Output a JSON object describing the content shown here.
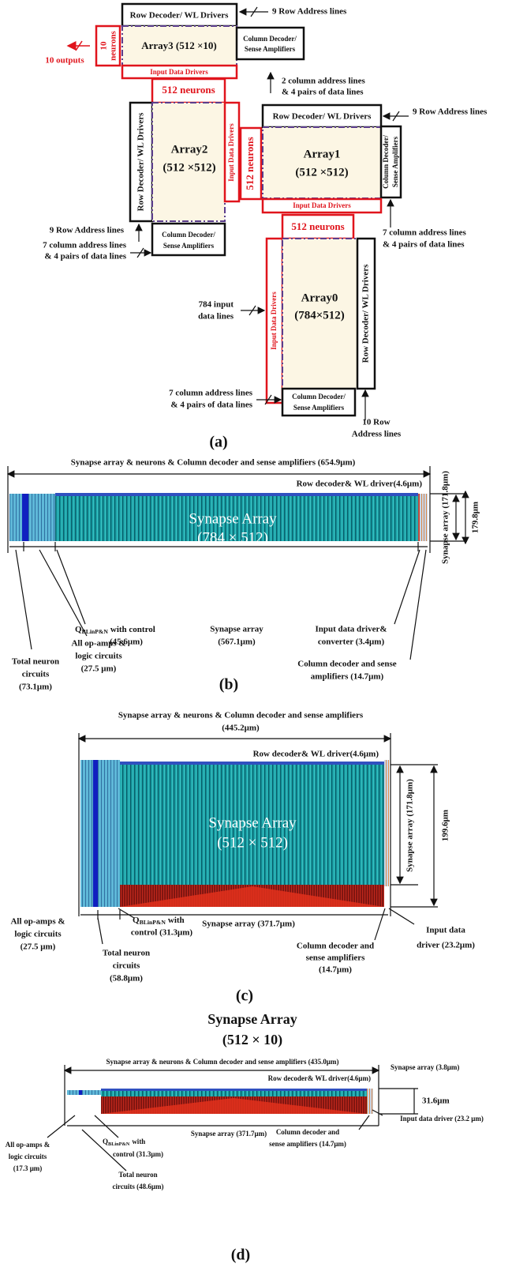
{
  "a": {
    "array3": {
      "label": "Array3 (512 ×10)",
      "row_decoder": "Row Decoder/ WL Drivers",
      "column_decoder": [
        "Column Decoder/",
        "Sense Amplifiers"
      ],
      "input_drivers": "Input Data Drivers",
      "neurons": [
        "10",
        "neurons"
      ],
      "outputs": "10 outputs",
      "row_address": "9 Row Address lines",
      "column_address": [
        "2 column address lines",
        "& 4 pairs of data lines"
      ]
    },
    "neurons_3_2": "512 neurons",
    "array2": {
      "label": [
        "Array2",
        "(512 ×512)"
      ],
      "row_decoder": "Row Decoder/ WL Drivers",
      "column_decoder": [
        "Column Decoder/",
        "Sense Amplifiers"
      ],
      "input_drivers": "Input Data Drivers",
      "row_address": "9 Row Address lines",
      "column_address": [
        "7 column address lines",
        "& 4 pairs of data lines"
      ]
    },
    "neurons_2_1": "512 neurons",
    "array1": {
      "label": [
        "Array1",
        "(512 ×512)"
      ],
      "row_decoder": "Row Decoder/ WL Drivers",
      "column_decoder": [
        "Column Decoder/",
        "Sense Amplifiers"
      ],
      "input_drivers": "Input Data Drivers",
      "row_address": "9 Row Address lines",
      "column_address": [
        "7 column address lines",
        "& 4 pairs of data lines"
      ]
    },
    "neurons_1_0": "512 neurons",
    "array0": {
      "label": [
        "Array0",
        "(784×512)"
      ],
      "row_decoder": "Row Decoder/ WL Drivers",
      "column_decoder": [
        "Column Decoder/",
        "Sense Amplifiers"
      ],
      "input_drivers": "Input Data Drivers",
      "input_lines": [
        "784 input",
        "data lines"
      ],
      "column_address": [
        "7 column address lines",
        "& 4 pairs of data lines"
      ],
      "row_address": [
        "10 Row",
        "Address lines"
      ]
    },
    "caption": "(a)"
  },
  "b": {
    "total_width": "Synapse array & neurons & Column decoder and sense amplifiers (654.9μm)",
    "row_decoder": "Row decoder& WL driver(4.6μm)",
    "array_label": [
      "Synapse Array",
      "(784 × 512)"
    ],
    "array_height": "Synapse array (171.8μm)",
    "total_height": "179.8μm",
    "q_control": {
      "symbol": "Q",
      "subscript": "BLinP&N",
      "rest": [
        "with control",
        "(45.6μm)"
      ]
    },
    "synapse_width": [
      "Synapse array",
      "(567.1μm)"
    ],
    "input_driver": [
      "Input data driver&",
      "converter (3.4μm)"
    ],
    "total_neuron": [
      "Total neuron",
      "circuits",
      "(73.1μm)"
    ],
    "op_amps": [
      "All op-amps &",
      "logic circuits",
      "(27.5 μm)"
    ],
    "column_decoder": [
      "Column decoder and sense",
      "amplifiers (14.7μm)"
    ],
    "caption": "(b)"
  },
  "c": {
    "total_width": [
      "Synapse array & neurons & Column decoder and sense amplifiers",
      "(445.2μm)"
    ],
    "row_decoder": "Row decoder& WL driver(4.6μm)",
    "array_label": [
      "Synapse Array",
      "(512 × 512)"
    ],
    "array_height": "Synapse array (171.8μm)",
    "total_height": "199.6μm",
    "q_control": {
      "symbol": "Q",
      "subscript": "BLinP&N",
      "rest": [
        "with",
        "control (31.3μm)"
      ]
    },
    "synapse_width": "Synapse array (371.7μm)",
    "op_amps": [
      "All op-amps &",
      "logic circuits",
      "(27.5 μm)"
    ],
    "total_neuron": [
      "Total neuron",
      "circuits",
      "(58.8μm)"
    ],
    "column_decoder": [
      "Column decoder and",
      "sense amplifiers",
      "(14.7μm)"
    ],
    "input_driver": [
      "Input data",
      "driver (23.2μm)"
    ],
    "caption": "(c)"
  },
  "d": {
    "array_label": [
      "Synapse Array",
      "(512 × 10)"
    ],
    "total_width": "Synapse array & neurons & Column decoder and sense amplifiers (435.0μm)",
    "row_decoder": "Row decoder& WL driver(4.6μm)",
    "array_height": "Synapse array (3.8μm)",
    "total_height": "31.6μm",
    "q_control": {
      "symbol": "Q",
      "subscript": "BLinP&N",
      "rest": [
        "with",
        "control (31.3μm)"
      ]
    },
    "synapse_width": "Synapse array (371.7μm)",
    "op_amps": [
      "All op-amps &",
      "logic circuits",
      "(17.3 μm)"
    ],
    "total_neuron": [
      "Total neuron",
      "circuits (48.6μm)"
    ],
    "column_decoder": [
      "Column decoder and",
      "sense amplifiers (14.7μm)"
    ],
    "input_driver": "Input data driver (23.2 μm)",
    "caption": "(d)"
  }
}
